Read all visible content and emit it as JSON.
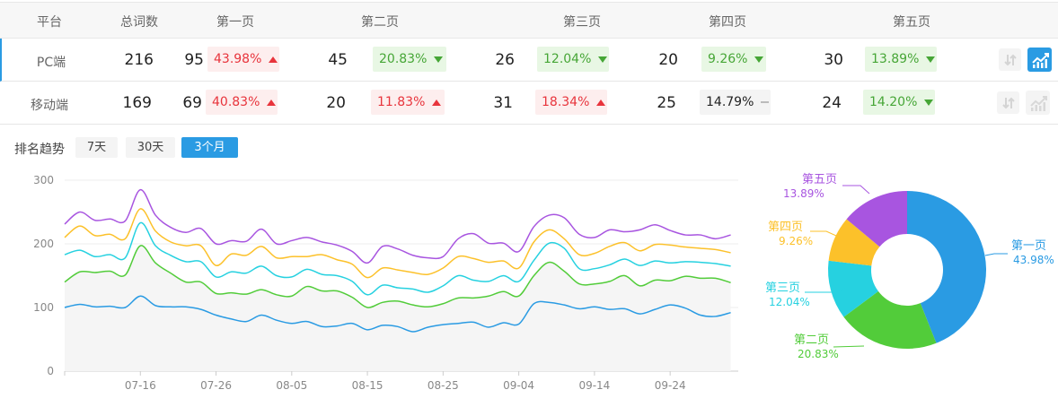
{
  "table": {
    "headers": [
      "平台",
      "总词数",
      "第一页",
      "第二页",
      "第三页",
      "第四页",
      "第五页"
    ],
    "rows": [
      {
        "platform": "PC端",
        "total": "216",
        "pages": [
          {
            "count": "95",
            "pct": "43.98%",
            "trend": "up"
          },
          {
            "count": "45",
            "pct": "20.83%",
            "trend": "down"
          },
          {
            "count": "26",
            "pct": "12.04%",
            "trend": "down"
          },
          {
            "count": "20",
            "pct": "9.26%",
            "trend": "down"
          },
          {
            "count": "30",
            "pct": "13.89%",
            "trend": "down"
          }
        ],
        "chart_active": true
      },
      {
        "platform": "移动端",
        "total": "169",
        "pages": [
          {
            "count": "69",
            "pct": "40.83%",
            "trend": "up"
          },
          {
            "count": "20",
            "pct": "11.83%",
            "trend": "up"
          },
          {
            "count": "31",
            "pct": "18.34%",
            "trend": "up"
          },
          {
            "count": "25",
            "pct": "14.79%",
            "trend": "flat"
          },
          {
            "count": "24",
            "pct": "14.20%",
            "trend": "down"
          }
        ],
        "chart_active": false
      }
    ],
    "icons": [
      "sort-icon",
      "trend-chart-icon"
    ]
  },
  "trend": {
    "label": "排名趋势",
    "ranges": [
      {
        "label": "7天",
        "active": false
      },
      {
        "label": "30天",
        "active": false
      },
      {
        "label": "3个月",
        "active": true
      }
    ]
  },
  "colors": {
    "accent": "#2a9be3",
    "up": "#e8343c",
    "down": "#46a636"
  },
  "chart_data": [
    {
      "type": "line",
      "stacked": true,
      "ylim": [
        0,
        300
      ],
      "yticks": [
        "0",
        "100",
        "200",
        "300"
      ],
      "xlim": [
        "07-06",
        "10-03"
      ],
      "xticks": [
        "07-16",
        "07-26",
        "08-05",
        "08-15",
        "08-25",
        "09-04",
        "09-14",
        "09-24"
      ],
      "grid": true,
      "x": [
        "07-06",
        "07-08",
        "07-10",
        "07-12",
        "07-14",
        "07-16",
        "07-18",
        "07-20",
        "07-22",
        "07-24",
        "07-26",
        "07-28",
        "07-30",
        "08-01",
        "08-03",
        "08-05",
        "08-07",
        "08-09",
        "08-11",
        "08-13",
        "08-15",
        "08-17",
        "08-19",
        "08-21",
        "08-23",
        "08-25",
        "08-27",
        "08-29",
        "08-31",
        "09-02",
        "09-04",
        "09-06",
        "09-08",
        "09-10",
        "09-12",
        "09-14",
        "09-16",
        "09-18",
        "09-20",
        "09-22",
        "09-24",
        "09-26",
        "09-28",
        "09-30",
        "10-02"
      ],
      "series": [
        {
          "color": "#2a9be3",
          "values": [
            100,
            105,
            101,
            102,
            100,
            118,
            103,
            101,
            101,
            97,
            88,
            82,
            78,
            88,
            80,
            75,
            78,
            70,
            71,
            75,
            65,
            72,
            70,
            62,
            69,
            73,
            75,
            77,
            69,
            76,
            74,
            106,
            108,
            104,
            98,
            101,
            97,
            98,
            90,
            97,
            104,
            99,
            88,
            86,
            92
          ]
        },
        {
          "color": "#52cc3a",
          "values": [
            40,
            51,
            54,
            55,
            51,
            79,
            67,
            53,
            39,
            43,
            34,
            41,
            43,
            40,
            40,
            43,
            55,
            56,
            55,
            41,
            35,
            36,
            40,
            42,
            32,
            33,
            40,
            38,
            49,
            49,
            44,
            44,
            63,
            53,
            39,
            36,
            44,
            52,
            44,
            46,
            38,
            50,
            58,
            60,
            47
          ]
        },
        {
          "color": "#26d1e0",
          "values": [
            43,
            34,
            25,
            26,
            27,
            36,
            27,
            28,
            32,
            32,
            26,
            33,
            33,
            37,
            30,
            30,
            27,
            26,
            24,
            25,
            20,
            27,
            21,
            25,
            23,
            28,
            35,
            28,
            23,
            25,
            23,
            24,
            30,
            36,
            24,
            24,
            26,
            26,
            32,
            30,
            28,
            23,
            25,
            23,
            26
          ]
        },
        {
          "color": "#fcc12a",
          "values": [
            27,
            38,
            33,
            32,
            30,
            22,
            23,
            21,
            25,
            25,
            18,
            28,
            28,
            31,
            28,
            32,
            20,
            31,
            25,
            27,
            27,
            27,
            28,
            26,
            28,
            28,
            30,
            34,
            30,
            23,
            21,
            29,
            21,
            15,
            22,
            24,
            29,
            26,
            23,
            26,
            28,
            23,
            22,
            22,
            21
          ]
        },
        {
          "color": "#a855e0",
          "values": [
            21,
            22,
            24,
            24,
            28,
            30,
            25,
            23,
            21,
            27,
            34,
            21,
            22,
            27,
            22,
            25,
            30,
            20,
            23,
            20,
            23,
            34,
            33,
            27,
            26,
            18,
            28,
            39,
            30,
            28,
            26,
            24,
            23,
            33,
            32,
            25,
            26,
            17,
            33,
            31,
            23,
            19,
            21,
            17,
            28
          ]
        }
      ]
    },
    {
      "type": "pie",
      "donut": true,
      "slices": [
        {
          "name": "第一页",
          "value": 43.98,
          "label": "43.98%",
          "color": "#2a9be3"
        },
        {
          "name": "第二页",
          "value": 20.83,
          "label": "20.83%",
          "color": "#52cc3a"
        },
        {
          "name": "第三页",
          "value": 12.04,
          "label": "12.04%",
          "color": "#26d1e0"
        },
        {
          "name": "第四页",
          "value": 9.26,
          "label": "9.26%",
          "color": "#fcc12a"
        },
        {
          "name": "第五页",
          "value": 13.89,
          "label": "13.89%",
          "color": "#a855e0"
        }
      ]
    }
  ]
}
